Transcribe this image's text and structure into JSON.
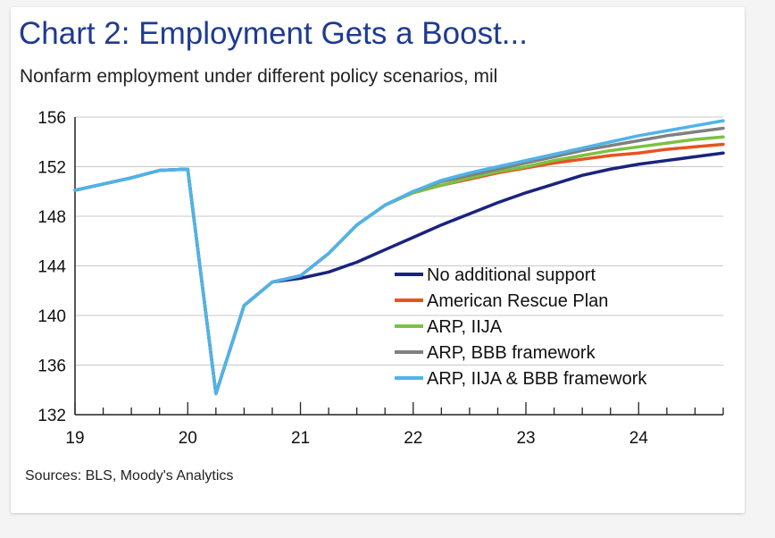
{
  "chart_data": {
    "type": "line",
    "title": "Chart 2: Employment Gets a Boost...",
    "subtitle": "Nonfarm employment under different policy scenarios, mil",
    "source": "Sources: BLS, Moody's Analytics",
    "xlabel": "",
    "ylabel": "",
    "xlim": [
      19,
      24.75
    ],
    "ylim": [
      132,
      156
    ],
    "x_tick_labels": [
      "19",
      "20",
      "21",
      "22",
      "23",
      "24"
    ],
    "y_tick_labels": [
      "156",
      "152",
      "148",
      "144",
      "140",
      "136",
      "132"
    ],
    "grid": "horizontal",
    "legend_position": "bottom-right",
    "series": [
      {
        "name": "No additional support",
        "color": "#1a237e",
        "points": [
          [
            19.0,
            150.1
          ],
          [
            19.25,
            150.6
          ],
          [
            19.5,
            151.1
          ],
          [
            19.75,
            151.7
          ],
          [
            20.0,
            151.8
          ],
          [
            20.25,
            133.7
          ],
          [
            20.5,
            140.8
          ],
          [
            20.75,
            142.7
          ],
          [
            21.0,
            143.0
          ],
          [
            21.25,
            143.5
          ],
          [
            21.5,
            144.3
          ],
          [
            21.75,
            145.3
          ],
          [
            22.0,
            146.3
          ],
          [
            22.25,
            147.3
          ],
          [
            22.5,
            148.2
          ],
          [
            22.75,
            149.1
          ],
          [
            23.0,
            149.9
          ],
          [
            23.25,
            150.6
          ],
          [
            23.5,
            151.3
          ],
          [
            23.75,
            151.8
          ],
          [
            24.0,
            152.2
          ],
          [
            24.25,
            152.5
          ],
          [
            24.5,
            152.8
          ],
          [
            24.75,
            153.1
          ]
        ]
      },
      {
        "name": "American Rescue Plan",
        "color": "#e8531f",
        "points": [
          [
            19.0,
            150.1
          ],
          [
            19.25,
            150.6
          ],
          [
            19.5,
            151.1
          ],
          [
            19.75,
            151.7
          ],
          [
            20.0,
            151.8
          ],
          [
            20.25,
            133.7
          ],
          [
            20.5,
            140.8
          ],
          [
            20.75,
            142.7
          ],
          [
            21.0,
            143.2
          ],
          [
            21.25,
            145.0
          ],
          [
            21.5,
            147.3
          ],
          [
            21.75,
            148.9
          ],
          [
            22.0,
            149.9
          ],
          [
            22.25,
            150.5
          ],
          [
            22.5,
            151.0
          ],
          [
            22.75,
            151.5
          ],
          [
            23.0,
            151.9
          ],
          [
            23.25,
            152.3
          ],
          [
            23.5,
            152.6
          ],
          [
            23.75,
            152.9
          ],
          [
            24.0,
            153.1
          ],
          [
            24.25,
            153.4
          ],
          [
            24.5,
            153.6
          ],
          [
            24.75,
            153.8
          ]
        ]
      },
      {
        "name": "ARP, IIJA",
        "color": "#7cc142",
        "points": [
          [
            19.0,
            150.1
          ],
          [
            19.25,
            150.6
          ],
          [
            19.5,
            151.1
          ],
          [
            19.75,
            151.7
          ],
          [
            20.0,
            151.8
          ],
          [
            20.25,
            133.7
          ],
          [
            20.5,
            140.8
          ],
          [
            20.75,
            142.7
          ],
          [
            21.0,
            143.2
          ],
          [
            21.25,
            145.0
          ],
          [
            21.5,
            147.3
          ],
          [
            21.75,
            148.9
          ],
          [
            22.0,
            149.9
          ],
          [
            22.25,
            150.5
          ],
          [
            22.5,
            151.1
          ],
          [
            22.75,
            151.6
          ],
          [
            23.0,
            152.0
          ],
          [
            23.25,
            152.5
          ],
          [
            23.5,
            152.9
          ],
          [
            23.75,
            153.3
          ],
          [
            24.0,
            153.6
          ],
          [
            24.25,
            153.9
          ],
          [
            24.5,
            154.2
          ],
          [
            24.75,
            154.4
          ]
        ]
      },
      {
        "name": "ARP, BBB framework",
        "color": "#808080",
        "points": [
          [
            19.0,
            150.1
          ],
          [
            19.25,
            150.6
          ],
          [
            19.5,
            151.1
          ],
          [
            19.75,
            151.7
          ],
          [
            20.0,
            151.8
          ],
          [
            20.25,
            133.7
          ],
          [
            20.5,
            140.8
          ],
          [
            20.75,
            142.7
          ],
          [
            21.0,
            143.2
          ],
          [
            21.25,
            145.0
          ],
          [
            21.5,
            147.3
          ],
          [
            21.75,
            148.9
          ],
          [
            22.0,
            150.0
          ],
          [
            22.25,
            150.8
          ],
          [
            22.5,
            151.3
          ],
          [
            22.75,
            151.8
          ],
          [
            23.0,
            152.3
          ],
          [
            23.25,
            152.8
          ],
          [
            23.5,
            153.3
          ],
          [
            23.75,
            153.7
          ],
          [
            24.0,
            154.1
          ],
          [
            24.25,
            154.5
          ],
          [
            24.5,
            154.8
          ],
          [
            24.75,
            155.1
          ]
        ]
      },
      {
        "name": "ARP, IIJA & BBB framework",
        "color": "#4fb3ea",
        "points": [
          [
            19.0,
            150.1
          ],
          [
            19.25,
            150.6
          ],
          [
            19.5,
            151.1
          ],
          [
            19.75,
            151.7
          ],
          [
            20.0,
            151.8
          ],
          [
            20.25,
            133.7
          ],
          [
            20.5,
            140.8
          ],
          [
            20.75,
            142.7
          ],
          [
            21.0,
            143.2
          ],
          [
            21.25,
            145.0
          ],
          [
            21.5,
            147.3
          ],
          [
            21.75,
            148.9
          ],
          [
            22.0,
            150.0
          ],
          [
            22.25,
            150.9
          ],
          [
            22.5,
            151.5
          ],
          [
            22.75,
            152.0
          ],
          [
            23.0,
            152.5
          ],
          [
            23.25,
            153.0
          ],
          [
            23.5,
            153.5
          ],
          [
            23.75,
            154.0
          ],
          [
            24.0,
            154.5
          ],
          [
            24.25,
            154.9
          ],
          [
            24.5,
            155.3
          ],
          [
            24.75,
            155.7
          ]
        ]
      }
    ]
  }
}
